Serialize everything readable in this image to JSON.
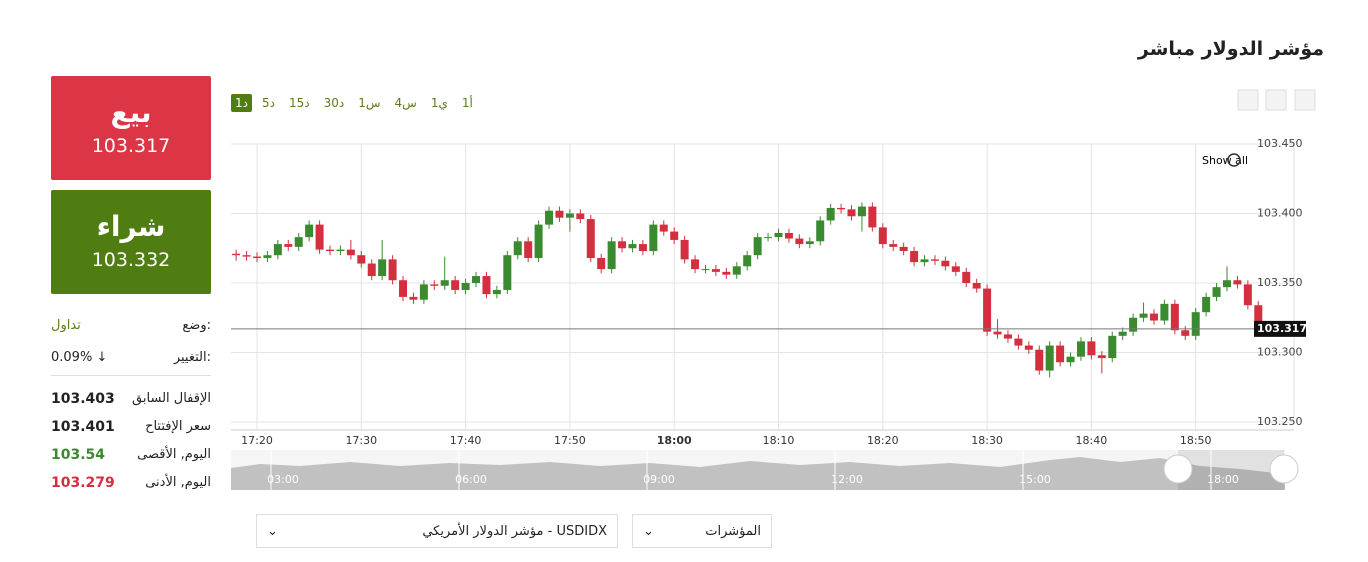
{
  "header": {
    "title": "مؤشر الدولار مباشر"
  },
  "sidebar": {
    "sell": {
      "label": "بيع",
      "price": "103.317"
    },
    "buy": {
      "label": "شراء",
      "price": "103.332"
    },
    "status": {
      "label": "وضع:",
      "value": "تداول"
    },
    "change": {
      "label": "التغيير:",
      "value": "0.09%"
    },
    "rows": [
      {
        "label": "الإقفال السابق",
        "value": "103.403"
      },
      {
        "label": "سعر الإفتتاح",
        "value": "103.401"
      },
      {
        "label": "اليوم, الأقصى",
        "value": "103.54"
      },
      {
        "label": "اليوم, الأدنى",
        "value": "103.279"
      }
    ]
  },
  "timeframes": [
    "1د",
    "5د",
    "15د",
    "30د",
    "1س",
    "4س",
    "1ي",
    "1أ"
  ],
  "show_all": "Show all",
  "navigator": {
    "labels": [
      "03:00",
      "06:00",
      "09:00",
      "12:00",
      "15:00",
      "18:00"
    ]
  },
  "selectors": {
    "instrument": "USDIDX - مؤشر الدولار الأمريكي",
    "category": "المؤشرات"
  },
  "chart_data": {
    "type": "candlestick",
    "up_color": "#3a8a30",
    "down_color": "#d32f3e",
    "grid": true,
    "ylim": [
      103.25,
      103.45
    ],
    "yticks": [
      {
        "value": 103.45,
        "label": "103.450"
      },
      {
        "value": 103.4,
        "label": "103.400"
      },
      {
        "value": 103.35,
        "label": "103.350"
      },
      {
        "value": 103.3,
        "label": "103.300"
      },
      {
        "value": 103.25,
        "label": "103.250"
      }
    ],
    "xticks": [
      "17:20",
      "17:30",
      "17:40",
      "17:50",
      "18:00",
      "18:10",
      "18:20",
      "18:30",
      "18:40",
      "18:50"
    ],
    "last_price": 103.317,
    "x": [
      "17:18",
      "17:19",
      "17:20",
      "17:21",
      "17:22",
      "17:23",
      "17:24",
      "17:25",
      "17:26",
      "17:27",
      "17:28",
      "17:29",
      "17:30",
      "17:31",
      "17:32",
      "17:33",
      "17:34",
      "17:35",
      "17:36",
      "17:37",
      "17:38",
      "17:39",
      "17:40",
      "17:41",
      "17:42",
      "17:43",
      "17:44",
      "17:45",
      "17:46",
      "17:47",
      "17:48",
      "17:49",
      "17:50",
      "17:51",
      "17:52",
      "17:53",
      "17:54",
      "17:55",
      "17:56",
      "17:57",
      "17:58",
      "17:59",
      "18:00",
      "18:01",
      "18:02",
      "18:03",
      "18:04",
      "18:05",
      "18:06",
      "18:07",
      "18:08",
      "18:09",
      "18:10",
      "18:11",
      "18:12",
      "18:13",
      "18:14",
      "18:15",
      "18:16",
      "18:17",
      "18:18",
      "18:19",
      "18:20",
      "18:21",
      "18:22",
      "18:23",
      "18:24",
      "18:25",
      "18:26",
      "18:27",
      "18:28",
      "18:29",
      "18:30",
      "18:31",
      "18:32",
      "18:33",
      "18:34",
      "18:35",
      "18:36",
      "18:37",
      "18:38",
      "18:39",
      "18:40",
      "18:41",
      "18:42",
      "18:43",
      "18:44",
      "18:45",
      "18:46",
      "18:47",
      "18:48",
      "18:49",
      "18:50",
      "18:51",
      "18:52",
      "18:53",
      "18:54",
      "18:55",
      "18:56"
    ],
    "open": [
      103.371,
      103.37,
      103.369,
      103.368,
      103.37,
      103.378,
      103.376,
      103.383,
      103.392,
      103.374,
      103.373,
      103.374,
      103.37,
      103.364,
      103.355,
      103.367,
      103.352,
      103.34,
      103.338,
      103.349,
      103.348,
      103.352,
      103.345,
      103.35,
      103.355,
      103.342,
      103.345,
      103.37,
      103.38,
      103.368,
      103.392,
      103.402,
      103.397,
      103.4,
      103.396,
      103.368,
      103.36,
      103.38,
      103.375,
      103.378,
      103.373,
      103.392,
      103.387,
      103.381,
      103.367,
      103.36,
      103.36,
      103.358,
      103.356,
      103.362,
      103.37,
      103.383,
      103.383,
      103.386,
      103.382,
      103.378,
      103.38,
      103.395,
      103.404,
      103.403,
      103.398,
      103.405,
      103.39,
      103.378,
      103.376,
      103.373,
      103.365,
      103.367,
      103.366,
      103.362,
      103.358,
      103.35,
      103.346,
      103.315,
      103.313,
      103.31,
      103.305,
      103.302,
      103.287,
      103.305,
      103.293,
      103.297,
      103.308,
      103.298,
      103.296,
      103.312,
      103.315,
      103.325,
      103.328,
      103.323,
      103.335,
      103.316,
      103.312,
      103.329,
      103.34,
      103.347,
      103.352,
      103.349,
      103.334
    ],
    "high": [
      103.374,
      103.373,
      103.372,
      103.373,
      103.381,
      103.381,
      103.386,
      103.395,
      103.395,
      103.377,
      103.377,
      103.381,
      103.373,
      103.367,
      103.381,
      103.37,
      103.355,
      103.343,
      103.352,
      103.352,
      103.369,
      103.355,
      103.353,
      103.358,
      103.358,
      103.348,
      103.373,
      103.383,
      103.383,
      103.395,
      103.405,
      103.405,
      103.403,
      103.403,
      103.399,
      103.371,
      103.383,
      103.383,
      103.381,
      103.381,
      103.395,
      103.395,
      103.39,
      103.384,
      103.37,
      103.363,
      103.363,
      103.361,
      103.365,
      103.373,
      103.386,
      103.386,
      103.389,
      103.389,
      103.385,
      103.383,
      103.398,
      103.407,
      103.407,
      103.406,
      103.408,
      103.408,
      103.393,
      103.381,
      103.379,
      103.376,
      103.37,
      103.37,
      103.369,
      103.365,
      103.361,
      103.353,
      103.349,
      103.324,
      103.316,
      103.313,
      103.308,
      103.305,
      103.308,
      103.308,
      103.3,
      103.311,
      103.311,
      103.301,
      103.315,
      103.318,
      103.328,
      103.336,
      103.331,
      103.338,
      103.338,
      103.319,
      103.332,
      103.343,
      103.35,
      103.362,
      103.355,
      103.352,
      103.337
    ],
    "low": [
      103.366,
      103.366,
      103.365,
      103.365,
      103.367,
      103.373,
      103.373,
      103.38,
      103.371,
      103.37,
      103.37,
      103.367,
      103.361,
      103.352,
      103.352,
      103.349,
      103.337,
      103.335,
      103.335,
      103.345,
      103.345,
      103.342,
      103.342,
      103.347,
      103.339,
      103.339,
      103.342,
      103.367,
      103.365,
      103.365,
      103.389,
      103.394,
      103.387,
      103.393,
      103.365,
      103.357,
      103.357,
      103.372,
      103.372,
      103.37,
      103.37,
      103.384,
      103.378,
      103.364,
      103.357,
      103.357,
      103.355,
      103.353,
      103.353,
      103.359,
      103.367,
      103.38,
      103.38,
      103.379,
      103.375,
      103.375,
      103.377,
      103.392,
      103.4,
      103.395,
      103.387,
      103.387,
      103.375,
      103.373,
      103.37,
      103.362,
      103.362,
      103.363,
      103.359,
      103.355,
      103.347,
      103.343,
      103.312,
      103.31,
      103.307,
      103.302,
      103.299,
      103.284,
      103.282,
      103.29,
      103.29,
      103.294,
      103.295,
      103.285,
      103.293,
      103.309,
      103.312,
      103.322,
      103.32,
      103.32,
      103.313,
      103.309,
      103.309,
      103.326,
      103.337,
      103.344,
      103.346,
      103.331,
      103.314
    ],
    "close": [
      103.37,
      103.369,
      103.368,
      103.37,
      103.378,
      103.376,
      103.383,
      103.392,
      103.374,
      103.373,
      103.374,
      103.37,
      103.364,
      103.355,
      103.367,
      103.352,
      103.34,
      103.338,
      103.349,
      103.348,
      103.352,
      103.345,
      103.35,
      103.355,
      103.342,
      103.345,
      103.37,
      103.38,
      103.368,
      103.392,
      103.402,
      103.397,
      103.4,
      103.396,
      103.368,
      103.36,
      103.38,
      103.375,
      103.378,
      103.373,
      103.392,
      103.387,
      103.381,
      103.367,
      103.36,
      103.36,
      103.358,
      103.356,
      103.362,
      103.37,
      103.383,
      103.383,
      103.386,
      103.382,
      103.378,
      103.38,
      103.395,
      103.404,
      103.403,
      103.398,
      103.405,
      103.39,
      103.378,
      103.376,
      103.373,
      103.365,
      103.367,
      103.366,
      103.362,
      103.358,
      103.35,
      103.346,
      103.315,
      103.313,
      103.31,
      103.305,
      103.302,
      103.287,
      103.305,
      103.293,
      103.297,
      103.308,
      103.298,
      103.296,
      103.312,
      103.315,
      103.325,
      103.328,
      103.323,
      103.335,
      103.316,
      103.312,
      103.329,
      103.34,
      103.347,
      103.352,
      103.349,
      103.334,
      103.317
    ]
  }
}
